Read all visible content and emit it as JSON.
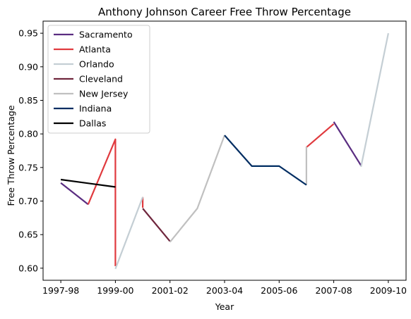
{
  "chart_data": {
    "type": "line",
    "title": "Anthony Johnson  Career Free Throw Percentage",
    "xlabel": "Year",
    "ylabel": "Free Throw Percentage",
    "x_categories": [
      "1997-98",
      "1998-99",
      "1999-00",
      "2000-01",
      "2001-02",
      "2002-03",
      "2003-04",
      "2004-05",
      "2005-06",
      "2006-07",
      "2007-08",
      "2008-09",
      "2009-10"
    ],
    "x_tick_labels": [
      "1997-98",
      "1999-00",
      "2001-02",
      "2003-04",
      "2005-06",
      "2007-08",
      "2009-10"
    ],
    "xlim": [
      -0.65,
      12.65
    ],
    "y_ticks": [
      "0.60",
      "0.65",
      "0.70",
      "0.75",
      "0.80",
      "0.85",
      "0.90",
      "0.95"
    ],
    "ylim": [
      0.582,
      0.968
    ],
    "legend_location": "upper-left",
    "grid": false,
    "series": [
      {
        "name": "Sacramento",
        "color": "#5a2d81",
        "points": [
          [
            "1997-98",
            0.727
          ],
          [
            "1998-99",
            0.695
          ]
        ]
      },
      {
        "name": "Sacramento",
        "color": "#5a2d81",
        "points": [
          [
            "2007-08",
            0.818
          ],
          [
            "2008-09",
            0.753
          ]
        ]
      },
      {
        "name": "Atlanta",
        "color": "#e03a3e",
        "points": [
          [
            "1998-99",
            0.695
          ],
          [
            "1999-00",
            0.792
          ],
          [
            "1999-00",
            0.603
          ]
        ]
      },
      {
        "name": "Atlanta",
        "color": "#e03a3e",
        "points": [
          [
            "2000-01",
            0.706
          ],
          [
            "2000-01",
            0.69
          ]
        ]
      },
      {
        "name": "Atlanta",
        "color": "#e03a3e",
        "points": [
          [
            "2006-07",
            0.78
          ],
          [
            "2007-08",
            0.815
          ]
        ]
      },
      {
        "name": "Orlando",
        "color": "#c4ced4",
        "points": [
          [
            "1999-00",
            0.599
          ],
          [
            "2000-01",
            0.706
          ]
        ]
      },
      {
        "name": "Orlando",
        "color": "#c4ced4",
        "points": [
          [
            "2008-09",
            0.751
          ],
          [
            "2009-10",
            0.95
          ]
        ]
      },
      {
        "name": "Cleveland",
        "color": "#6f263d",
        "points": [
          [
            "2000-01",
            0.689
          ],
          [
            "2001-02",
            0.64
          ]
        ]
      },
      {
        "name": "New Jersey",
        "color": "#c0c0c0",
        "points": [
          [
            "2001-02",
            0.639
          ],
          [
            "2002-03",
            0.689
          ],
          [
            "2003-04",
            0.798
          ]
        ]
      },
      {
        "name": "New Jersey",
        "color": "#c0c0c0",
        "points": [
          [
            "2006-07",
            0.724
          ],
          [
            "2006-07",
            0.781
          ]
        ]
      },
      {
        "name": "Indiana",
        "color": "#002d62",
        "points": [
          [
            "2003-04",
            0.798
          ],
          [
            "2004-05",
            0.752
          ],
          [
            "2005-06",
            0.752
          ],
          [
            "2006-07",
            0.724
          ]
        ]
      },
      {
        "name": "Dallas",
        "color": "#000000",
        "points": [
          [
            "1997-98",
            0.732
          ],
          [
            "1999-00",
            0.721
          ]
        ]
      }
    ],
    "legend": [
      {
        "label": "Sacramento",
        "color": "#5a2d81"
      },
      {
        "label": "Atlanta",
        "color": "#e03a3e"
      },
      {
        "label": "Orlando",
        "color": "#c4ced4"
      },
      {
        "label": "Cleveland",
        "color": "#6f263d"
      },
      {
        "label": "New Jersey",
        "color": "#c0c0c0"
      },
      {
        "label": "Indiana",
        "color": "#002d62"
      },
      {
        "label": "Dallas",
        "color": "#000000"
      }
    ]
  }
}
